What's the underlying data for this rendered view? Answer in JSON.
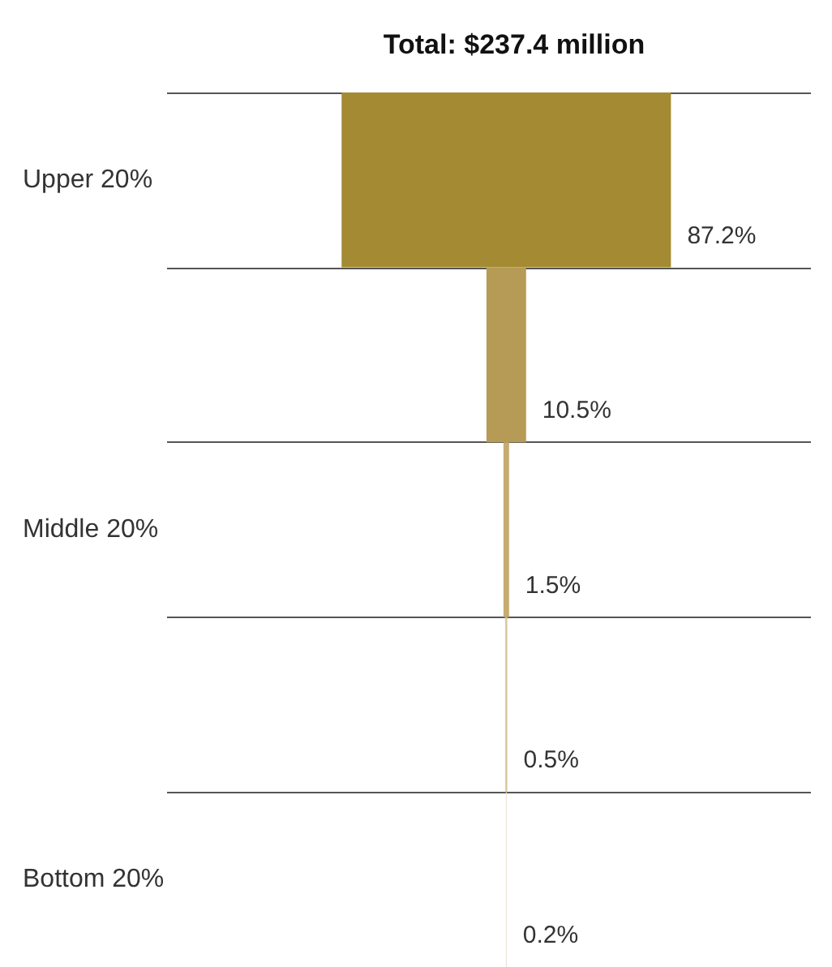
{
  "chart_data": {
    "type": "other",
    "title": "Total: $237.4 million",
    "categories": [
      "Upper 20%",
      null,
      "Middle 20%",
      null,
      "Bottom 20%"
    ],
    "values": [
      87.2,
      10.5,
      1.5,
      0.5,
      0.2
    ],
    "value_labels": [
      "87.2%",
      "10.5%",
      "1.5%",
      "0.5%",
      "0.2%"
    ],
    "colors": [
      "#a38a33",
      "#b59b55",
      "#c6ac70",
      "#d7c497",
      "#e6dccc"
    ]
  }
}
